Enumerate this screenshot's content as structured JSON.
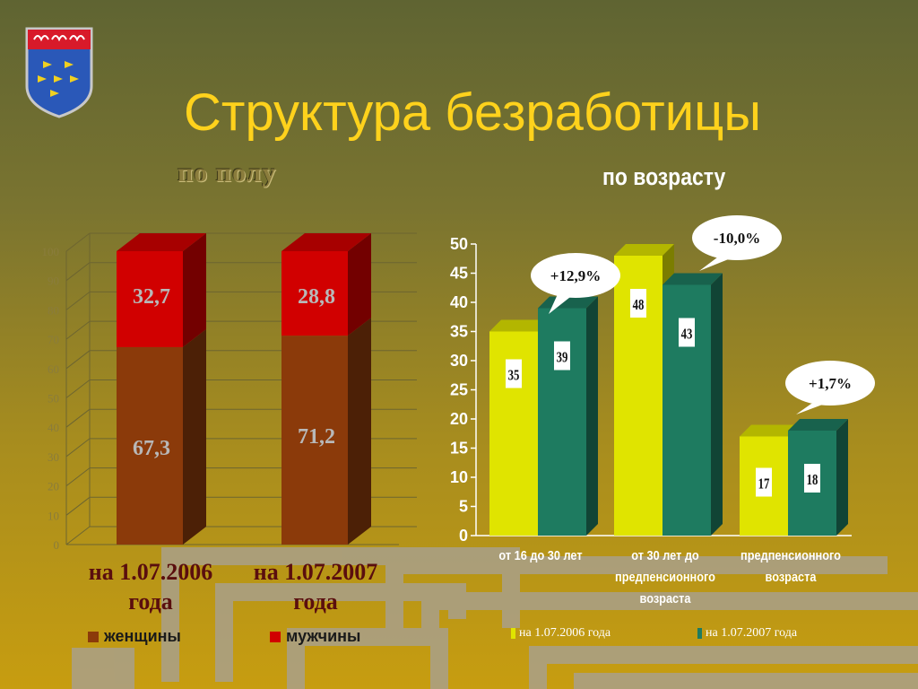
{
  "title": "Структура безработицы",
  "subtitle_left": "по полу",
  "subtitle_right": "по возрасту",
  "colors": {
    "women": "#8b3a0a",
    "men": "#d10000",
    "series_2006": "#e0e400",
    "series_2007": "#1e7b60"
  },
  "chart_data": [
    {
      "type": "bar",
      "stacked": true,
      "categories": [
        "на 1.07.2006 года",
        "на 1.07.2007 года"
      ],
      "series": [
        {
          "name": "женщины",
          "values": [
            67.3,
            71.2
          ]
        },
        {
          "name": "мужчины",
          "values": [
            32.7,
            28.8
          ]
        }
      ],
      "value_labels": [
        [
          "67,3",
          "71,2"
        ],
        [
          "32,7",
          "28,8"
        ]
      ],
      "ylim": [
        0,
        100
      ],
      "yticks": [
        0,
        10,
        20,
        30,
        40,
        50,
        60,
        70,
        80,
        90,
        100
      ],
      "legend": "bottom",
      "grid": true
    },
    {
      "type": "bar",
      "categories": [
        "от 16 до 30 лет",
        "от 30 лет до предпенсионного возраста",
        "предпенсионного возраста"
      ],
      "category_lines": [
        [
          "от 16 до 30 лет"
        ],
        [
          "от 30 лет до",
          "предпенсионного",
          "возраста"
        ],
        [
          "предпенсионного",
          "возраста"
        ]
      ],
      "series": [
        {
          "name": "на 1.07.2006 года",
          "values": [
            35,
            48,
            17
          ]
        },
        {
          "name": "на 1.07.2007 года",
          "values": [
            39,
            43,
            18
          ]
        }
      ],
      "ylim": [
        0,
        50
      ],
      "yticks": [
        0,
        5,
        10,
        15,
        20,
        25,
        30,
        35,
        40,
        45,
        50
      ],
      "annotations": [
        "+12,9%",
        "-10,0%",
        "+1,7%"
      ],
      "legend": "bottom",
      "grid": false
    }
  ]
}
